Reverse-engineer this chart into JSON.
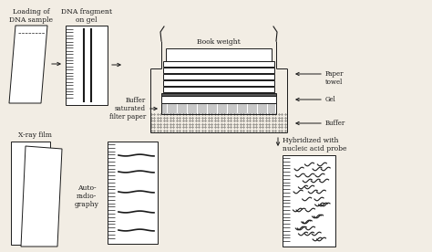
{
  "bg_color": "#f2ede4",
  "line_color": "#1a1a1a",
  "labels": {
    "loading": "Loading of\nDNA sample",
    "dna_gel": "DNA fragment\non gel",
    "book_weight": "Book weight",
    "paper_towel": "Paper\ntowel",
    "gel": "Gel",
    "buffer": "Buffer",
    "buffer_saturated": "Buffer\nsaturated\nfilter paper",
    "xray": "X-ray film",
    "autoradiography": "Auto-\nradio-\ngraphy",
    "hybridized": "Hybridized with\nnucleic acid probe"
  }
}
